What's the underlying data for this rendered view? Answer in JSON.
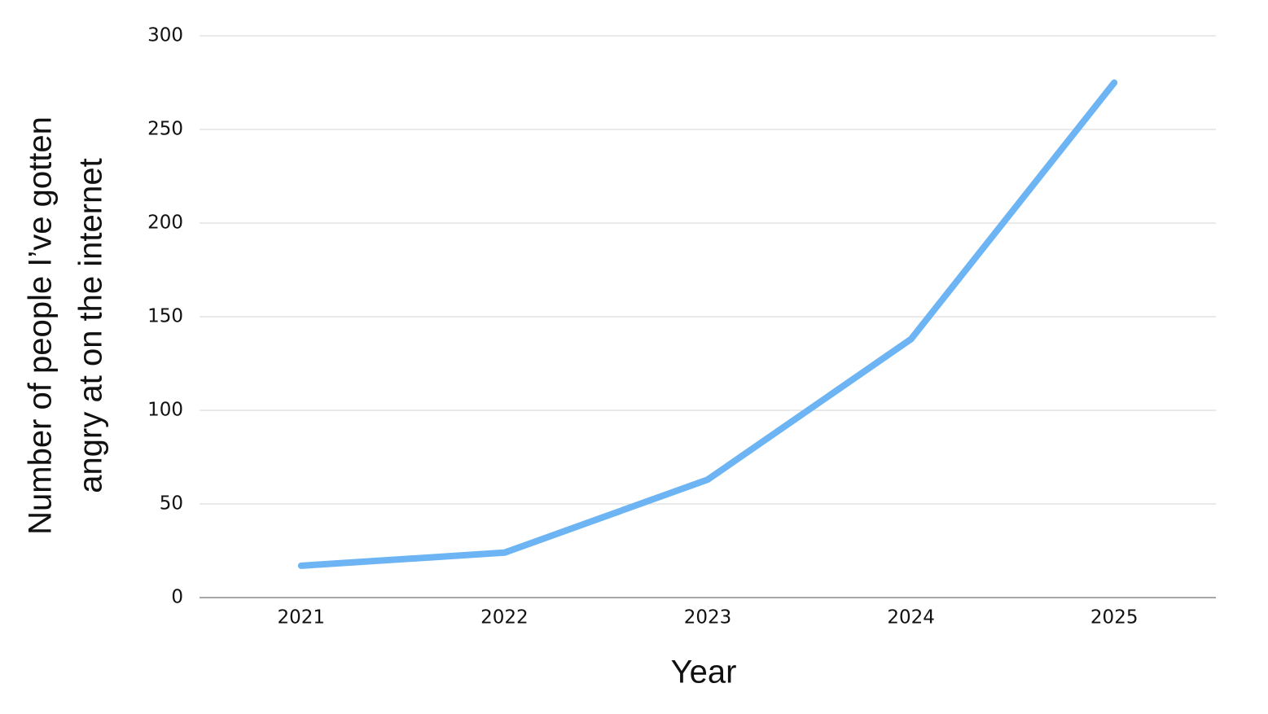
{
  "chart_data": {
    "type": "line",
    "x_label": "Year",
    "y_label": [
      "Number of people I’ve gotten",
      "angry at on the internet"
    ],
    "categories": [
      "2021",
      "2022",
      "2023",
      "2024",
      "2025"
    ],
    "series": [
      {
        "name": "Number of people",
        "color": "#6cb4f3",
        "values": [
          17,
          24,
          63,
          138,
          275
        ]
      }
    ],
    "ylim": [
      0,
      300
    ],
    "yticks": [
      0,
      50,
      100,
      150,
      200,
      250,
      300
    ],
    "grid": true
  }
}
